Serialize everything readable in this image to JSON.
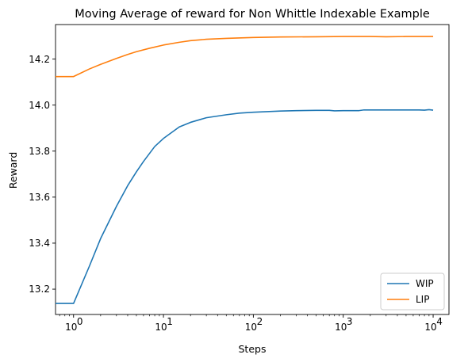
{
  "chart_data": {
    "type": "line",
    "title": "Moving Average of reward for Non Whittle Indexable Example",
    "xlabel": "Steps",
    "ylabel": "Reward",
    "xscale": "log",
    "xlim": [
      0.63,
      15000
    ],
    "ylim": [
      13.09,
      14.35
    ],
    "x_ticks": [
      {
        "value": 1,
        "label": "10",
        "exp": "0"
      },
      {
        "value": 10,
        "label": "10",
        "exp": "1"
      },
      {
        "value": 100,
        "label": "10",
        "exp": "2"
      },
      {
        "value": 1000,
        "label": "10",
        "exp": "3"
      },
      {
        "value": 10000,
        "label": "10",
        "exp": "4"
      }
    ],
    "y_ticks": [
      {
        "value": 13.2,
        "label": "13.2"
      },
      {
        "value": 13.4,
        "label": "13.4"
      },
      {
        "value": 13.6,
        "label": "13.6"
      },
      {
        "value": 13.8,
        "label": "13.8"
      },
      {
        "value": 14.0,
        "label": "14.0"
      },
      {
        "value": 14.2,
        "label": "14.2"
      }
    ],
    "grid": false,
    "legend_position": "lower-right",
    "series": [
      {
        "name": "WIP",
        "color": "#1f77b4",
        "points": [
          [
            0.63,
            13.138
          ],
          [
            1,
            13.138
          ],
          [
            1.5,
            13.3
          ],
          [
            2,
            13.42
          ],
          [
            3,
            13.56
          ],
          [
            4,
            13.65
          ],
          [
            5,
            13.71
          ],
          [
            6,
            13.755
          ],
          [
            8,
            13.82
          ],
          [
            10,
            13.855
          ],
          [
            15,
            13.905
          ],
          [
            20,
            13.925
          ],
          [
            30,
            13.945
          ],
          [
            50,
            13.958
          ],
          [
            70,
            13.965
          ],
          [
            100,
            13.969
          ],
          [
            150,
            13.972
          ],
          [
            200,
            13.974
          ],
          [
            300,
            13.976
          ],
          [
            500,
            13.977
          ],
          [
            700,
            13.977
          ],
          [
            800,
            13.975
          ],
          [
            1000,
            13.976
          ],
          [
            1500,
            13.976
          ],
          [
            1700,
            13.979
          ],
          [
            3000,
            13.979
          ],
          [
            5000,
            13.979
          ],
          [
            7000,
            13.979
          ],
          [
            8000,
            13.978
          ],
          [
            9000,
            13.98
          ],
          [
            10000,
            13.978
          ]
        ]
      },
      {
        "name": "LIP",
        "color": "#ff7f0e",
        "points": [
          [
            0.63,
            14.124
          ],
          [
            1,
            14.124
          ],
          [
            1.5,
            14.157
          ],
          [
            2,
            14.177
          ],
          [
            3,
            14.203
          ],
          [
            4,
            14.22
          ],
          [
            5,
            14.232
          ],
          [
            7,
            14.247
          ],
          [
            10,
            14.261
          ],
          [
            15,
            14.273
          ],
          [
            20,
            14.28
          ],
          [
            30,
            14.286
          ],
          [
            50,
            14.29
          ],
          [
            100,
            14.294
          ],
          [
            200,
            14.296
          ],
          [
            500,
            14.297
          ],
          [
            1000,
            14.298
          ],
          [
            2000,
            14.298
          ],
          [
            3000,
            14.297
          ],
          [
            5000,
            14.298
          ],
          [
            10000,
            14.298
          ]
        ]
      }
    ]
  }
}
